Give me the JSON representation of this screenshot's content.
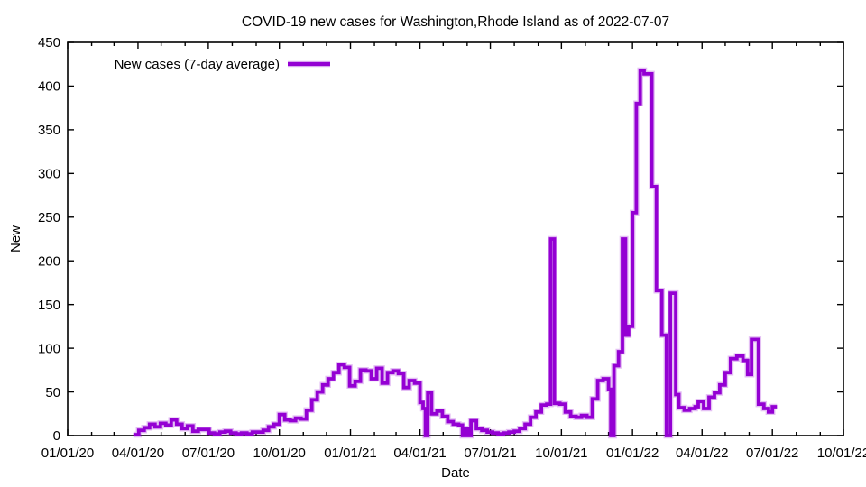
{
  "chart_data": {
    "type": "line",
    "style": "step-after",
    "title": "COVID-19 new cases for Washington,Rhode Island as of 2022-07-07",
    "xlabel": "Date",
    "ylabel": "New",
    "legend_position": "top-left-inside",
    "grid": false,
    "background": "#ffffff",
    "frame_color": "#000000",
    "x_range": [
      "2020-01-01",
      "2022-10-01"
    ],
    "x_end": "2022-07-07",
    "ylim": [
      0,
      450
    ],
    "x_tick_labels": [
      "01/01/20",
      "04/01/20",
      "07/01/20",
      "10/01/20",
      "01/01/21",
      "04/01/21",
      "07/01/21",
      "10/01/21",
      "01/01/22",
      "04/01/22",
      "07/01/22",
      "10/01/22"
    ],
    "y_tick_labels": [
      "0",
      "50",
      "100",
      "150",
      "200",
      "250",
      "300",
      "350",
      "400",
      "450"
    ],
    "series": [
      {
        "name": "New cases (7-day average)",
        "color": "#9400d3",
        "points": [
          [
            "2020-03-26",
            1
          ],
          [
            "2020-04-02",
            6
          ],
          [
            "2020-04-09",
            9
          ],
          [
            "2020-04-16",
            13
          ],
          [
            "2020-04-23",
            10
          ],
          [
            "2020-04-30",
            14
          ],
          [
            "2020-05-07",
            12
          ],
          [
            "2020-05-14",
            18
          ],
          [
            "2020-05-21",
            13
          ],
          [
            "2020-05-28",
            8
          ],
          [
            "2020-06-04",
            11
          ],
          [
            "2020-06-11",
            5
          ],
          [
            "2020-06-18",
            7
          ],
          [
            "2020-06-25",
            7
          ],
          [
            "2020-07-02",
            3
          ],
          [
            "2020-07-09",
            2
          ],
          [
            "2020-07-16",
            4
          ],
          [
            "2020-07-23",
            5
          ],
          [
            "2020-07-30",
            3
          ],
          [
            "2020-08-06",
            2
          ],
          [
            "2020-08-13",
            3
          ],
          [
            "2020-08-20",
            2
          ],
          [
            "2020-08-27",
            4
          ],
          [
            "2020-09-03",
            4
          ],
          [
            "2020-09-10",
            6
          ],
          [
            "2020-09-17",
            10
          ],
          [
            "2020-09-24",
            13
          ],
          [
            "2020-10-01",
            24
          ],
          [
            "2020-10-08",
            18
          ],
          [
            "2020-10-15",
            17
          ],
          [
            "2020-10-22",
            20
          ],
          [
            "2020-10-29",
            19
          ],
          [
            "2020-11-05",
            29
          ],
          [
            "2020-11-12",
            41
          ],
          [
            "2020-11-19",
            50
          ],
          [
            "2020-11-26",
            58
          ],
          [
            "2020-12-03",
            65
          ],
          [
            "2020-12-10",
            72
          ],
          [
            "2020-12-17",
            81
          ],
          [
            "2020-12-24",
            78
          ],
          [
            "2020-12-31",
            57
          ],
          [
            "2021-01-07",
            62
          ],
          [
            "2021-01-14",
            75
          ],
          [
            "2021-01-21",
            74
          ],
          [
            "2021-01-28",
            65
          ],
          [
            "2021-02-04",
            77
          ],
          [
            "2021-02-11",
            60
          ],
          [
            "2021-02-18",
            72
          ],
          [
            "2021-02-25",
            74
          ],
          [
            "2021-03-04",
            71
          ],
          [
            "2021-03-11",
            55
          ],
          [
            "2021-03-18",
            63
          ],
          [
            "2021-03-25",
            60
          ],
          [
            "2021-04-01",
            38
          ],
          [
            "2021-04-05",
            31
          ],
          [
            "2021-04-08",
            0
          ],
          [
            "2021-04-11",
            49
          ],
          [
            "2021-04-16",
            25
          ],
          [
            "2021-04-23",
            28
          ],
          [
            "2021-04-30",
            22
          ],
          [
            "2021-05-07",
            16
          ],
          [
            "2021-05-14",
            13
          ],
          [
            "2021-05-21",
            12
          ],
          [
            "2021-05-26",
            0
          ],
          [
            "2021-05-30",
            8
          ],
          [
            "2021-06-03",
            0
          ],
          [
            "2021-06-06",
            17
          ],
          [
            "2021-06-13",
            8
          ],
          [
            "2021-06-20",
            6
          ],
          [
            "2021-06-27",
            4
          ],
          [
            "2021-07-04",
            3
          ],
          [
            "2021-07-11",
            2
          ],
          [
            "2021-07-18",
            3
          ],
          [
            "2021-07-25",
            4
          ],
          [
            "2021-08-01",
            5
          ],
          [
            "2021-08-08",
            8
          ],
          [
            "2021-08-15",
            13
          ],
          [
            "2021-08-22",
            21
          ],
          [
            "2021-08-29",
            27
          ],
          [
            "2021-09-05",
            35
          ],
          [
            "2021-09-12",
            36
          ],
          [
            "2021-09-17",
            225
          ],
          [
            "2021-09-22",
            37
          ],
          [
            "2021-09-29",
            36
          ],
          [
            "2021-10-06",
            27
          ],
          [
            "2021-10-13",
            22
          ],
          [
            "2021-10-20",
            21
          ],
          [
            "2021-10-27",
            23
          ],
          [
            "2021-11-03",
            21
          ],
          [
            "2021-11-10",
            42
          ],
          [
            "2021-11-17",
            63
          ],
          [
            "2021-11-24",
            65
          ],
          [
            "2021-12-01",
            53
          ],
          [
            "2021-12-04",
            0
          ],
          [
            "2021-12-08",
            80
          ],
          [
            "2021-12-14",
            96
          ],
          [
            "2021-12-19",
            225
          ],
          [
            "2021-12-23",
            115
          ],
          [
            "2021-12-27",
            125
          ],
          [
            "2022-01-01",
            255
          ],
          [
            "2022-01-06",
            380
          ],
          [
            "2022-01-11",
            418
          ],
          [
            "2022-01-16",
            414
          ],
          [
            "2022-01-26",
            285
          ],
          [
            "2022-02-01",
            166
          ],
          [
            "2022-02-08",
            115
          ],
          [
            "2022-02-14",
            0
          ],
          [
            "2022-02-19",
            163
          ],
          [
            "2022-02-26",
            47
          ],
          [
            "2022-03-02",
            32
          ],
          [
            "2022-03-09",
            29
          ],
          [
            "2022-03-16",
            31
          ],
          [
            "2022-03-23",
            33
          ],
          [
            "2022-03-27",
            39
          ],
          [
            "2022-04-03",
            31
          ],
          [
            "2022-04-10",
            44
          ],
          [
            "2022-04-17",
            49
          ],
          [
            "2022-04-24",
            58
          ],
          [
            "2022-05-01",
            72
          ],
          [
            "2022-05-08",
            88
          ],
          [
            "2022-05-16",
            91
          ],
          [
            "2022-05-24",
            86
          ],
          [
            "2022-05-30",
            70
          ],
          [
            "2022-06-04",
            110
          ],
          [
            "2022-06-13",
            36
          ],
          [
            "2022-06-20",
            31
          ],
          [
            "2022-06-26",
            27
          ],
          [
            "2022-07-01",
            33
          ]
        ]
      }
    ]
  }
}
